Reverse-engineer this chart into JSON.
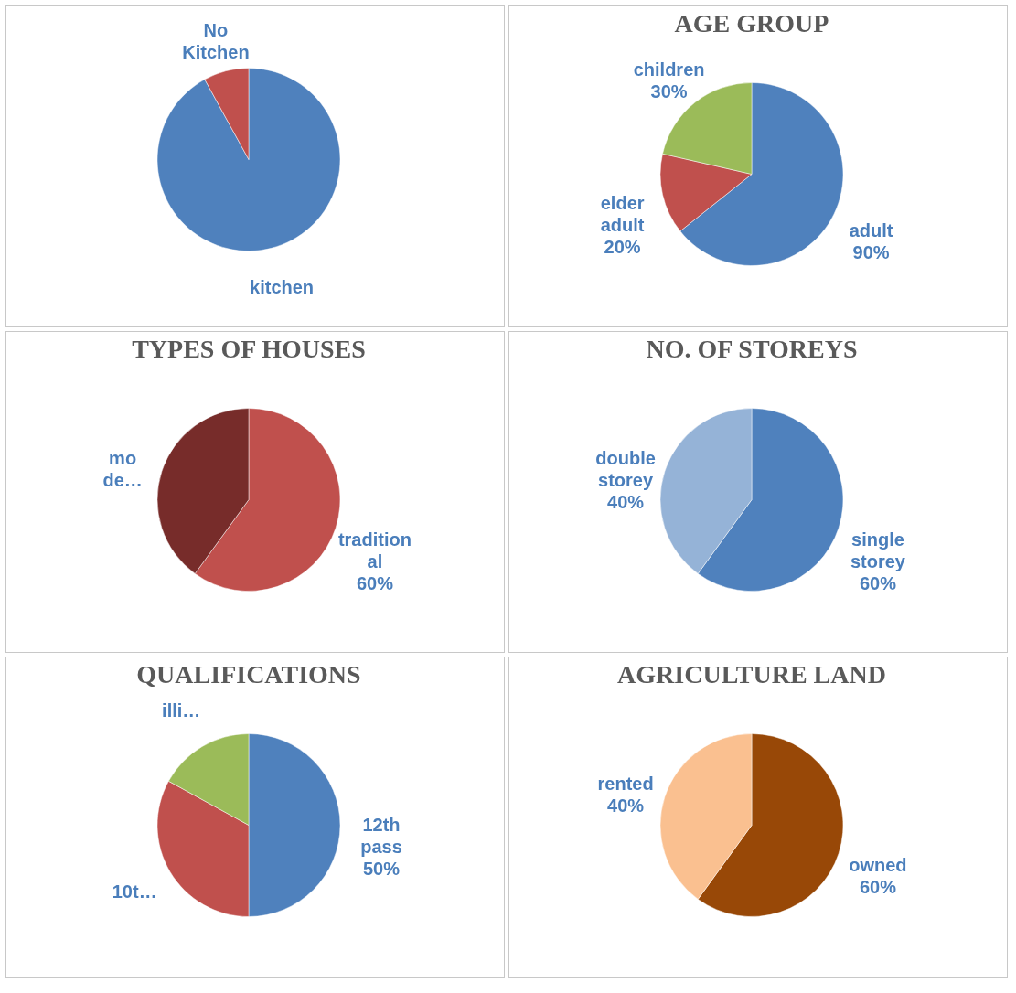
{
  "chart_data": [
    {
      "type": "pie",
      "categories": [
        "kitchen",
        "No Kitchen"
      ],
      "values": [
        92,
        8
      ],
      "colors": [
        "#4f81bd",
        "#c0504d"
      ],
      "legend": false
    },
    {
      "type": "pie",
      "title": "AGE GROUP",
      "categories": [
        "adult",
        "elder adult",
        "children"
      ],
      "values": [
        90,
        20,
        30
      ],
      "colors": [
        "#4f81bd",
        "#c0504d",
        "#9bbb59"
      ],
      "value_labels": [
        "90%",
        "20%",
        "30%"
      ],
      "legend": false
    },
    {
      "type": "pie",
      "title": "TYPES OF HOUSES",
      "categories": [
        "traditional",
        "mo de…"
      ],
      "values": [
        60,
        40
      ],
      "value_labels": [
        "60%",
        null
      ],
      "colors": [
        "#c0504d",
        "#772c2a"
      ],
      "legend": false
    },
    {
      "type": "pie",
      "title": "NO. OF STOREYS",
      "categories": [
        "single storey",
        "double storey"
      ],
      "values": [
        60,
        40
      ],
      "colors": [
        "#4f81bd",
        "#95b3d7"
      ],
      "value_labels": [
        "60%",
        "40%"
      ],
      "legend": false
    },
    {
      "type": "pie",
      "title": "QUALIFICATIONS",
      "categories": [
        "12th pass",
        "10t…",
        "illi…"
      ],
      "values": [
        50,
        33,
        17
      ],
      "value_labels": [
        "50%",
        null,
        null
      ],
      "colors": [
        "#4f81bd",
        "#c0504d",
        "#9bbb59"
      ],
      "legend": false
    },
    {
      "type": "pie",
      "title": "AGRICULTURE LAND",
      "categories": [
        "owned",
        "rented"
      ],
      "values": [
        60,
        40
      ],
      "colors": [
        "#984807",
        "#fac090"
      ],
      "value_labels": [
        "60%",
        "40%"
      ],
      "legend": false
    }
  ]
}
